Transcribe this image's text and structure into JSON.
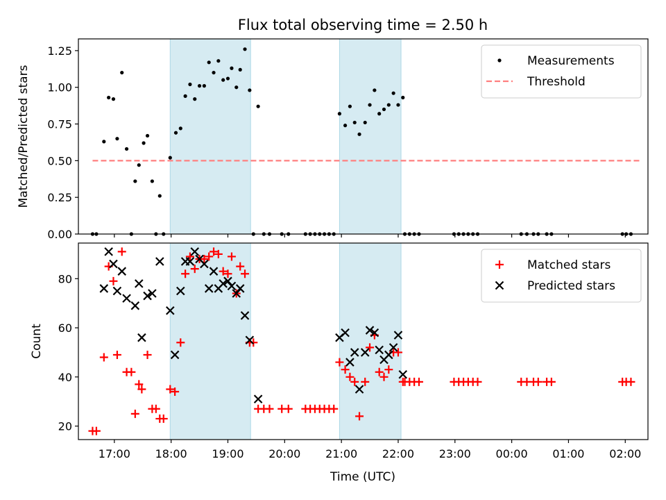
{
  "chart_data": [
    {
      "type": "scatter",
      "title": "Flux total observing time = 2.50 h",
      "xlabel": "",
      "ylabel": "Matched/Predicted stars",
      "xlim": [
        "16:22",
        "02:24"
      ],
      "ylim": [
        0,
        1.33
      ],
      "yticks": [
        "0.00",
        "0.25",
        "0.50",
        "0.75",
        "1.00",
        "1.25"
      ],
      "xticks": [
        "17:00",
        "18:00",
        "19:00",
        "20:00",
        "21:00",
        "22:00",
        "23:00",
        "00:00",
        "01:00",
        "02:00"
      ],
      "shaded_intervals": [
        [
          "17:59",
          "19:24"
        ],
        [
          "20:58",
          "22:03"
        ]
      ],
      "legend_position": "top-right",
      "threshold": {
        "name": "Threshold",
        "value": 0.5,
        "x_range": [
          "16:37",
          "02:17"
        ],
        "color": "#ff7f7f"
      },
      "series": [
        {
          "name": "Measurements",
          "marker": "dot",
          "color": "#000000",
          "points": [
            [
              "16:37",
              0
            ],
            [
              "16:41",
              0
            ],
            [
              "16:49",
              0.63
            ],
            [
              "16:54",
              0.93
            ],
            [
              "16:59",
              0.92
            ],
            [
              "17:03",
              0.65
            ],
            [
              "17:08",
              1.1
            ],
            [
              "17:13",
              0.58
            ],
            [
              "17:18",
              0
            ],
            [
              "17:22",
              0.36
            ],
            [
              "17:26",
              0.47
            ],
            [
              "17:31",
              0.62
            ],
            [
              "17:35",
              0.67
            ],
            [
              "17:40",
              0.36
            ],
            [
              "17:44",
              0
            ],
            [
              "17:48",
              0.26
            ],
            [
              "17:52",
              0
            ],
            [
              "17:59",
              0.52
            ],
            [
              "18:05",
              0.69
            ],
            [
              "18:10",
              0.72
            ],
            [
              "18:15",
              0.94
            ],
            [
              "18:20",
              1.02
            ],
            [
              "18:25",
              0.92
            ],
            [
              "18:30",
              1.01
            ],
            [
              "18:35",
              1.01
            ],
            [
              "18:40",
              1.17
            ],
            [
              "18:45",
              1.1
            ],
            [
              "18:50",
              1.18
            ],
            [
              "18:55",
              1.05
            ],
            [
              "19:00",
              1.06
            ],
            [
              "19:04",
              1.13
            ],
            [
              "19:09",
              1.0
            ],
            [
              "19:13",
              1.12
            ],
            [
              "19:18",
              1.26
            ],
            [
              "19:23",
              0.98
            ],
            [
              "19:27",
              0
            ],
            [
              "19:32",
              0.87
            ],
            [
              "19:38",
              0
            ],
            [
              "19:44",
              0
            ],
            [
              "19:57",
              0
            ],
            [
              "20:04",
              0
            ],
            [
              "20:22",
              0
            ],
            [
              "20:27",
              0
            ],
            [
              "20:32",
              0
            ],
            [
              "20:37",
              0
            ],
            [
              "20:42",
              0
            ],
            [
              "20:47",
              0
            ],
            [
              "20:52",
              0
            ],
            [
              "20:58",
              0.82
            ],
            [
              "21:04",
              0.74
            ],
            [
              "21:09",
              0.87
            ],
            [
              "21:14",
              0.76
            ],
            [
              "21:19",
              0.68
            ],
            [
              "21:25",
              0.76
            ],
            [
              "21:30",
              0.88
            ],
            [
              "21:35",
              0.98
            ],
            [
              "21:40",
              0.82
            ],
            [
              "21:45",
              0.85
            ],
            [
              "21:50",
              0.88
            ],
            [
              "21:55",
              0.96
            ],
            [
              "22:00",
              0.88
            ],
            [
              "22:05",
              0.93
            ],
            [
              "22:07",
              0
            ],
            [
              "22:12",
              0
            ],
            [
              "22:17",
              0
            ],
            [
              "22:22",
              0
            ],
            [
              "22:59",
              0
            ],
            [
              "23:04",
              0
            ],
            [
              "23:09",
              0
            ],
            [
              "23:14",
              0
            ],
            [
              "23:19",
              0
            ],
            [
              "23:24",
              0
            ],
            [
              "00:10",
              0
            ],
            [
              "00:16",
              0
            ],
            [
              "00:23",
              0
            ],
            [
              "00:28",
              0
            ],
            [
              "00:37",
              0
            ],
            [
              "00:42",
              0
            ],
            [
              "01:57",
              0
            ],
            [
              "02:01",
              0
            ],
            [
              "02:06",
              0
            ]
          ]
        }
      ]
    },
    {
      "type": "scatter",
      "title": "",
      "xlabel": "Time (UTC)",
      "ylabel": "Count",
      "xlim": [
        "16:22",
        "02:24"
      ],
      "ylim": [
        14.5,
        94.5
      ],
      "yticks": [
        "20",
        "40",
        "60",
        "80"
      ],
      "xticks": [
        "17:00",
        "18:00",
        "19:00",
        "20:00",
        "21:00",
        "22:00",
        "23:00",
        "00:00",
        "01:00",
        "02:00"
      ],
      "shaded_intervals": [
        [
          "17:59",
          "19:24"
        ],
        [
          "20:58",
          "22:03"
        ]
      ],
      "legend_position": "top-right",
      "series": [
        {
          "name": "Matched stars",
          "marker": "plus",
          "color": "#ff0000",
          "points": [
            [
              "16:37",
              18
            ],
            [
              "16:41",
              18
            ],
            [
              "16:49",
              48
            ],
            [
              "16:54",
              85
            ],
            [
              "16:59",
              79
            ],
            [
              "17:03",
              49
            ],
            [
              "17:08",
              91
            ],
            [
              "17:13",
              42
            ],
            [
              "17:18",
              42
            ],
            [
              "17:22",
              25
            ],
            [
              "17:26",
              37
            ],
            [
              "17:29",
              35
            ],
            [
              "17:35",
              49
            ],
            [
              "17:40",
              27
            ],
            [
              "17:44",
              27
            ],
            [
              "17:48",
              23
            ],
            [
              "17:52",
              23
            ],
            [
              "17:59",
              35
            ],
            [
              "18:04",
              34
            ],
            [
              "18:10",
              54
            ],
            [
              "18:15",
              82
            ],
            [
              "18:20",
              89
            ],
            [
              "18:25",
              84
            ],
            [
              "18:30",
              88
            ],
            [
              "18:35",
              88
            ],
            [
              "18:40",
              89
            ],
            [
              "18:45",
              91
            ],
            [
              "18:50",
              90
            ],
            [
              "18:55",
              83
            ],
            [
              "19:00",
              82
            ],
            [
              "19:04",
              89
            ],
            [
              "19:09",
              74
            ],
            [
              "19:13",
              85
            ],
            [
              "19:18",
              82
            ],
            [
              "19:23",
              54
            ],
            [
              "19:27",
              54
            ],
            [
              "19:32",
              27
            ],
            [
              "19:38",
              27
            ],
            [
              "19:44",
              27
            ],
            [
              "19:57",
              27
            ],
            [
              "20:04",
              27
            ],
            [
              "20:22",
              27
            ],
            [
              "20:27",
              27
            ],
            [
              "20:32",
              27
            ],
            [
              "20:37",
              27
            ],
            [
              "20:42",
              27
            ],
            [
              "20:47",
              27
            ],
            [
              "20:52",
              27
            ],
            [
              "20:58",
              46
            ],
            [
              "21:04",
              43
            ],
            [
              "21:09",
              40
            ],
            [
              "21:14",
              38
            ],
            [
              "21:19",
              24
            ],
            [
              "21:25",
              38
            ],
            [
              "21:30",
              52
            ],
            [
              "21:35",
              57
            ],
            [
              "21:40",
              42
            ],
            [
              "21:45",
              40
            ],
            [
              "21:50",
              43
            ],
            [
              "21:55",
              50
            ],
            [
              "22:00",
              50
            ],
            [
              "22:05",
              38
            ],
            [
              "22:07",
              38
            ],
            [
              "22:12",
              38
            ],
            [
              "22:17",
              38
            ],
            [
              "22:22",
              38
            ],
            [
              "22:59",
              38
            ],
            [
              "23:04",
              38
            ],
            [
              "23:09",
              38
            ],
            [
              "23:14",
              38
            ],
            [
              "23:19",
              38
            ],
            [
              "23:24",
              38
            ],
            [
              "00:10",
              38
            ],
            [
              "00:16",
              38
            ],
            [
              "00:23",
              38
            ],
            [
              "00:28",
              38
            ],
            [
              "00:37",
              38
            ],
            [
              "00:42",
              38
            ],
            [
              "01:57",
              38
            ],
            [
              "02:01",
              38
            ],
            [
              "02:06",
              38
            ]
          ]
        },
        {
          "name": "Predicted stars",
          "marker": "x",
          "color": "#000000",
          "points": [
            [
              "16:49",
              76
            ],
            [
              "16:54",
              91
            ],
            [
              "16:59",
              86
            ],
            [
              "17:03",
              75
            ],
            [
              "17:08",
              83
            ],
            [
              "17:13",
              72
            ],
            [
              "17:22",
              69
            ],
            [
              "17:26",
              78
            ],
            [
              "17:29",
              56
            ],
            [
              "17:35",
              73
            ],
            [
              "17:40",
              74
            ],
            [
              "17:48",
              87
            ],
            [
              "17:59",
              67
            ],
            [
              "18:04",
              49
            ],
            [
              "18:10",
              75
            ],
            [
              "18:15",
              87
            ],
            [
              "18:20",
              87
            ],
            [
              "18:25",
              91
            ],
            [
              "18:30",
              88
            ],
            [
              "18:35",
              86
            ],
            [
              "18:40",
              76
            ],
            [
              "18:45",
              83
            ],
            [
              "18:50",
              76
            ],
            [
              "18:55",
              78
            ],
            [
              "19:00",
              79
            ],
            [
              "19:04",
              77
            ],
            [
              "19:09",
              74
            ],
            [
              "19:13",
              76
            ],
            [
              "19:18",
              65
            ],
            [
              "19:23",
              55
            ],
            [
              "19:32",
              31
            ],
            [
              "20:58",
              56
            ],
            [
              "21:04",
              58
            ],
            [
              "21:09",
              46
            ],
            [
              "21:14",
              50
            ],
            [
              "21:19",
              35
            ],
            [
              "21:25",
              50
            ],
            [
              "21:30",
              59
            ],
            [
              "21:35",
              58
            ],
            [
              "21:40",
              51
            ],
            [
              "21:45",
              47
            ],
            [
              "21:50",
              49
            ],
            [
              "21:55",
              52
            ],
            [
              "22:00",
              57
            ],
            [
              "22:05",
              41
            ]
          ]
        }
      ]
    }
  ]
}
